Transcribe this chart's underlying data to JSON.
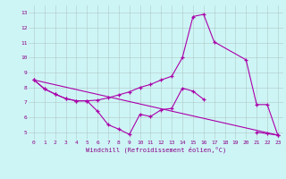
{
  "xlabel": "Windchill (Refroidissement éolien,°C)",
  "background_color": "#cef5f5",
  "line_color": "#aa00aa",
  "xlim": [
    -0.5,
    23.5
  ],
  "ylim": [
    4.5,
    13.5
  ],
  "xticks": [
    0,
    1,
    2,
    3,
    4,
    5,
    6,
    7,
    8,
    9,
    10,
    11,
    12,
    13,
    14,
    15,
    16,
    17,
    18,
    19,
    20,
    21,
    22,
    23
  ],
  "yticks": [
    5,
    6,
    7,
    8,
    9,
    10,
    11,
    12,
    13
  ],
  "line1_x": [
    0,
    1,
    2,
    3,
    4,
    5,
    6,
    7,
    8,
    9,
    10,
    11,
    12,
    13,
    14,
    15,
    16
  ],
  "line1_y": [
    8.5,
    7.9,
    7.55,
    7.25,
    7.1,
    7.1,
    6.4,
    5.5,
    5.2,
    4.85,
    6.2,
    6.05,
    6.5,
    6.6,
    7.95,
    7.75,
    7.2
  ],
  "line2_x": [
    0,
    1,
    2,
    3,
    4,
    5,
    6,
    7,
    8,
    9,
    10,
    11,
    12,
    13,
    14,
    15,
    16,
    17,
    20,
    21,
    22,
    23
  ],
  "line2_y": [
    8.5,
    7.9,
    7.55,
    7.25,
    7.1,
    7.1,
    7.15,
    7.3,
    7.5,
    7.7,
    8.0,
    8.2,
    8.5,
    8.75,
    10.0,
    12.75,
    12.9,
    11.05,
    9.85,
    6.85,
    6.85,
    4.8
  ],
  "line3_x": [
    0,
    23
  ],
  "line3_y": [
    8.5,
    4.8
  ],
  "line4_x": [
    21,
    22,
    23
  ],
  "line4_y": [
    5.0,
    4.9,
    4.8
  ]
}
